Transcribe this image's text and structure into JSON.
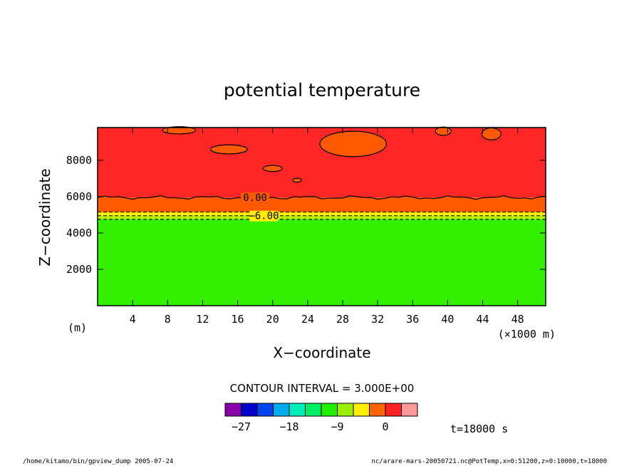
{
  "chart_data": {
    "type": "contour",
    "title": "potential temperature",
    "xlabel": "X−coordinate",
    "ylabel": "Z−coordinate",
    "x_unit_label": "(×1000 m)",
    "y_unit_label": "(m)",
    "xlim": [
      0,
      51.2
    ],
    "ylim": [
      0,
      9800
    ],
    "x_ticks": [
      4,
      8,
      12,
      16,
      20,
      24,
      28,
      32,
      36,
      40,
      44,
      48
    ],
    "y_ticks": [
      2000,
      4000,
      6000,
      8000
    ],
    "contour_labels": [
      {
        "text": "0.00",
        "x": 18,
        "z": 5950
      },
      {
        "text": "−6.00",
        "x": 19,
        "z": 4950
      }
    ],
    "contour_interval_label": "CONTOUR INTERVAL = 3.000E+00",
    "colorbar": {
      "colors": [
        "#8800aa",
        "#0000cc",
        "#0044ee",
        "#00aaee",
        "#00eebb",
        "#00ee66",
        "#22ee00",
        "#99ee00",
        "#ffee00",
        "#ff6600",
        "#ff2222",
        "#ff9999"
      ],
      "tick_labels": [
        "−27",
        "−18",
        "−9",
        "0"
      ]
    },
    "bands": [
      {
        "name": "lower",
        "z_top": 4750,
        "color": "#33f000"
      },
      {
        "name": "thin",
        "z_top": 4950,
        "color": "#b8f000"
      },
      {
        "name": "yellow",
        "z_top": 5150,
        "color": "#ffee00"
      },
      {
        "name": "orange",
        "z_top": 5950,
        "color": "#ff5a00"
      },
      {
        "name": "red",
        "z_top": 9800,
        "color": "#ff2626"
      }
    ],
    "time_label": "t=18000 s",
    "footer_left": "/home/kitamo/bin/gpview_dump  2005-07-24",
    "footer_right": "nc/arare-mars-20050721.nc@PotTemp,x=0:51200,z=0:10000,t=18000"
  }
}
